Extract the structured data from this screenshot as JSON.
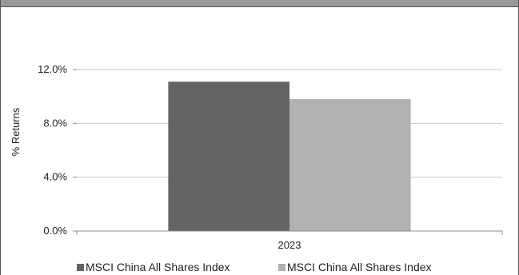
{
  "chart_data": {
    "type": "bar",
    "categories": [
      "2023"
    ],
    "series": [
      {
        "name": "MSCI China All Shares Index",
        "values": [
          11.1
        ],
        "color": "#646464"
      },
      {
        "name": "MSCI China All Shares Index",
        "values": [
          9.8
        ],
        "color": "#b2b2b2"
      }
    ],
    "ylabel": "% Returns",
    "xlabel": "",
    "ylim": [
      0,
      12
    ],
    "yticks": [
      "0.0%",
      "4.0%",
      "8.0%",
      "12.0%"
    ],
    "ytick_values": [
      0,
      4,
      8,
      12
    ],
    "grid": true,
    "legend_position": "bottom"
  }
}
